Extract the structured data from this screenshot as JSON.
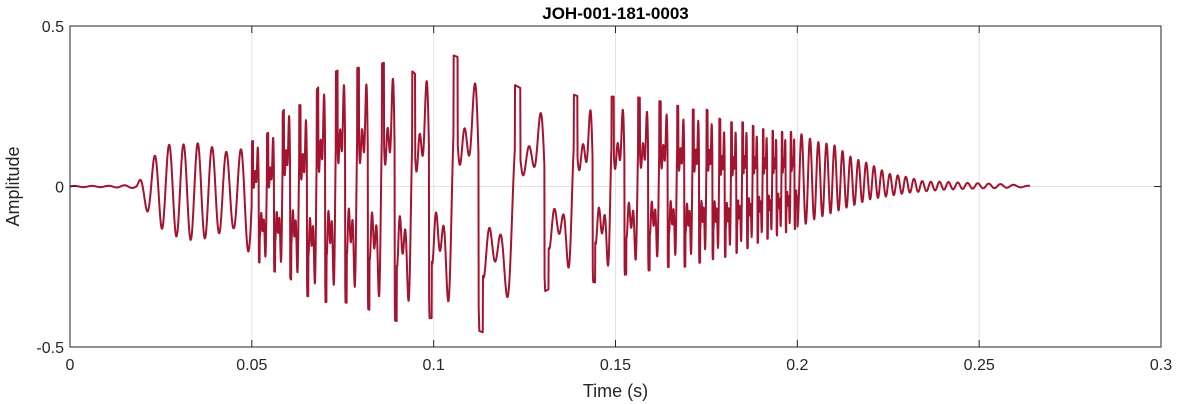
{
  "chart_data": {
    "type": "line",
    "title": "JOH-001-181-0003",
    "xlabel": "Time (s)",
    "ylabel": "Amplitude",
    "xlim": [
      0,
      0.3
    ],
    "ylim": [
      -0.5,
      0.5
    ],
    "xticks": [
      0,
      0.05,
      0.1,
      0.15,
      0.2,
      0.25,
      0.3
    ],
    "xtick_labels": [
      "0",
      "0.05",
      "0.1",
      "0.15",
      "0.2",
      "0.25",
      "0.3"
    ],
    "yticks": [
      -0.5,
      0,
      0.5
    ],
    "ytick_labels": [
      "-0.5",
      "0",
      "0.5"
    ],
    "grid": true,
    "series": [
      {
        "color": "#A2142F",
        "x": [
          0,
          0.01,
          0.018,
          0.02,
          0.025,
          0.03,
          0.035,
          0.04,
          0.045,
          0.05,
          0.055,
          0.06,
          0.065,
          0.07,
          0.075,
          0.08,
          0.085,
          0.09,
          0.095,
          0.1,
          0.105,
          0.11,
          0.115,
          0.12,
          0.125,
          0.13,
          0.135,
          0.14,
          0.145,
          0.15,
          0.155,
          0.16,
          0.165,
          0.17,
          0.175,
          0.18,
          0.185,
          0.19,
          0.195,
          0.2,
          0.205,
          0.21,
          0.215,
          0.22,
          0.225,
          0.23,
          0.235,
          0.24,
          0.245,
          0.25,
          0.255,
          0.26,
          0.264
        ],
        "upper": [
          0.002,
          0.002,
          0.005,
          0.03,
          0.13,
          0.13,
          0.135,
          0.12,
          0.1,
          0.14,
          0.17,
          0.26,
          0.25,
          0.34,
          0.37,
          0.37,
          0.38,
          0.4,
          0.35,
          0.41,
          0.41,
          0.39,
          0.36,
          0.33,
          0.3,
          0.27,
          0.3,
          0.28,
          0.28,
          0.28,
          0.28,
          0.27,
          0.26,
          0.24,
          0.24,
          0.2,
          0.2,
          0.18,
          0.17,
          0.17,
          0.14,
          0.13,
          0.09,
          0.07,
          0.04,
          0.03,
          0.015,
          0.015,
          0.012,
          0.01,
          0.008,
          0.005,
          0.002
        ],
        "lower": [
          -0.002,
          -0.002,
          -0.005,
          -0.06,
          -0.13,
          -0.16,
          -0.17,
          -0.15,
          -0.13,
          -0.22,
          -0.26,
          -0.28,
          -0.34,
          -0.36,
          -0.36,
          -0.37,
          -0.4,
          -0.42,
          -0.41,
          -0.41,
          -0.42,
          -0.44,
          -0.46,
          -0.4,
          -0.36,
          -0.33,
          -0.3,
          -0.29,
          -0.3,
          -0.28,
          -0.27,
          -0.26,
          -0.25,
          -0.25,
          -0.23,
          -0.22,
          -0.2,
          -0.17,
          -0.15,
          -0.13,
          -0.1,
          -0.08,
          -0.06,
          -0.04,
          -0.03,
          -0.02,
          -0.015,
          -0.01,
          -0.008,
          -0.006,
          -0.005,
          -0.003,
          -0.002
        ],
        "sample_rate": 16000
      }
    ]
  }
}
